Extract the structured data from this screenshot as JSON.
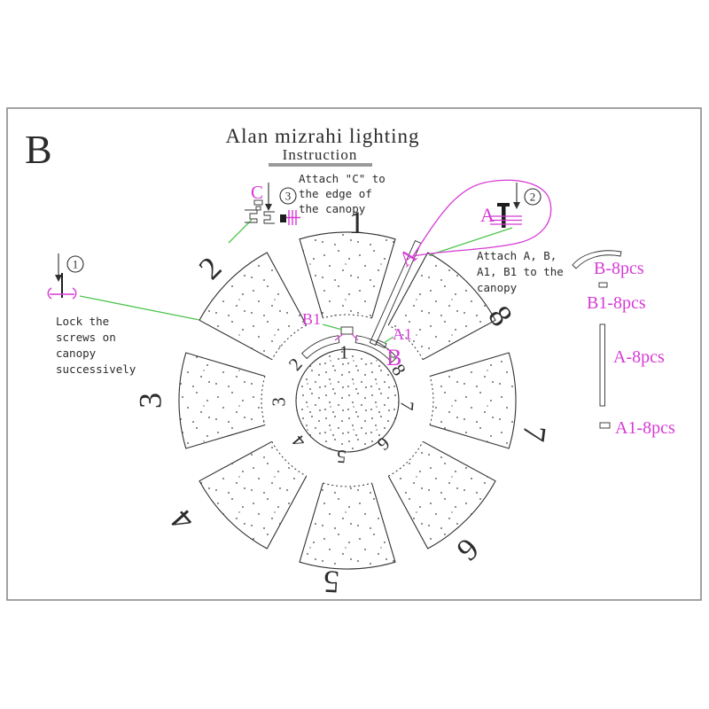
{
  "sheet": {
    "corner_letter": "B",
    "title": "Alan mizrahi lighting",
    "subtitle": "Instruction"
  },
  "steps": {
    "step1": {
      "badge": "1",
      "lines": [
        "Lock the",
        "screws on",
        "canopy",
        "successively"
      ]
    },
    "step2": {
      "badge": "2",
      "lines": [
        "Attach A, B,",
        "A1, B1 to the",
        "canopy"
      ]
    },
    "step3": {
      "badge": "3",
      "lines": [
        "Attach \"C\" to",
        "the edge of",
        "the canopy"
      ]
    }
  },
  "part_labels": {
    "A_detail": "A",
    "A_strip": "A",
    "A1": "A1",
    "B": "B",
    "B1": "B1",
    "C": "C"
  },
  "legend": [
    {
      "name": "B",
      "label": "B-8pcs"
    },
    {
      "name": "B1",
      "label": "B1-8pcs"
    },
    {
      "name": "A",
      "label": "A-8pcs"
    },
    {
      "name": "A1",
      "label": "A1-8pcs"
    }
  ],
  "flower": {
    "petal_numbers": [
      "1",
      "2",
      "3",
      "4",
      "5",
      "6",
      "7",
      "8"
    ],
    "hub_numbers": [
      "1",
      "2",
      "3",
      "4",
      "5",
      "6",
      "7",
      "8"
    ]
  },
  "colors": {
    "magenta": "#D63AD6",
    "green": "#4EC44E",
    "ink": "#2f2f2f",
    "border_gray": "#8a8a8a",
    "underline_gray": "#9a9a9a"
  }
}
